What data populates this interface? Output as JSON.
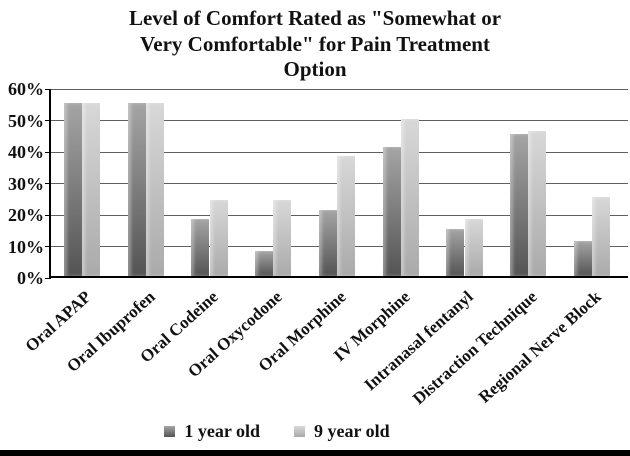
{
  "title_lines": [
    "Level of Comfort Rated as \"Somewhat or",
    "Very Comfortable\" for Pain Treatment",
    "Option"
  ],
  "chart_data": {
    "type": "bar",
    "title": "Level of Comfort Rated as \"Somewhat or Very Comfortable\" for Pain Treatment Option",
    "categories": [
      "Oral APAP",
      "Oral Ibuprofen",
      "Oral Codeine",
      "Oral Oxycodone",
      "Oral Morphine",
      "IV Morphine",
      "Intranasal fentanyl",
      "Distraction Technique",
      "Regional Nerve Block"
    ],
    "series": [
      {
        "name": "1 year old",
        "values": [
          55,
          55,
          18,
          8,
          21,
          41,
          15,
          45,
          11
        ],
        "color_top": "#a5a5a5",
        "color_bottom": "#545454"
      },
      {
        "name": "9 year old",
        "values": [
          55,
          55,
          24,
          24,
          38,
          50,
          18,
          46,
          25
        ],
        "color_top": "#d8d8d8",
        "color_bottom": "#aaaaaa"
      }
    ],
    "xlabel": "",
    "ylabel": "",
    "ylim": [
      0,
      60
    ],
    "ytick_step": 10,
    "yticks": [
      "0%",
      "10%",
      "20%",
      "30%",
      "40%",
      "50%",
      "60%"
    ],
    "grid": true,
    "legend_position": "bottom",
    "colors": {
      "background": "#ffffff",
      "gridline": "#5f5f5f",
      "axis": "#000000",
      "text": "#111111"
    }
  }
}
